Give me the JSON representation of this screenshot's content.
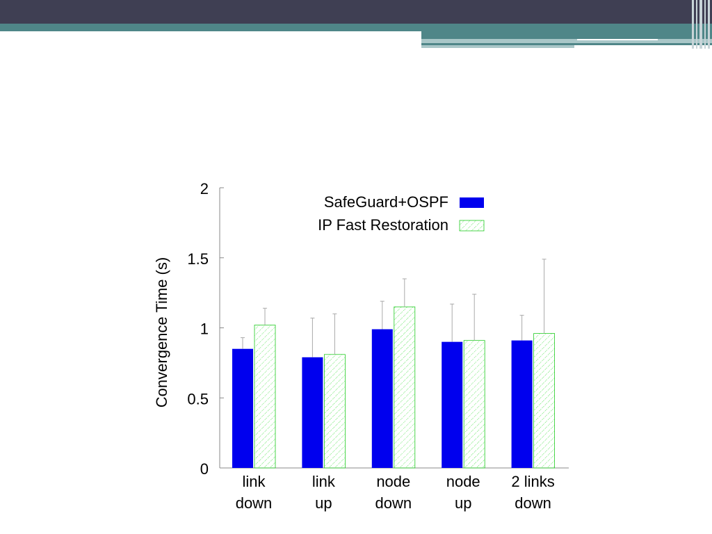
{
  "chart_data": {
    "type": "bar",
    "categories": [
      [
        "link",
        "down"
      ],
      [
        "link",
        "up"
      ],
      [
        "node",
        "down"
      ],
      [
        "node",
        "up"
      ],
      [
        "2 links",
        "down"
      ]
    ],
    "series": [
      {
        "name": "SafeGuard+OSPF",
        "values": [
          0.85,
          0.79,
          0.99,
          0.9,
          0.91
        ],
        "error_high": [
          0.93,
          1.07,
          1.19,
          1.17,
          1.09
        ],
        "color": "#0000ee",
        "fill": "solid"
      },
      {
        "name": "IP Fast Restoration",
        "values": [
          1.02,
          0.81,
          1.15,
          0.91,
          0.96
        ],
        "error_high": [
          1.14,
          1.1,
          1.35,
          1.24,
          1.49
        ],
        "color": "#22cc22",
        "fill": "hatch"
      }
    ],
    "ylabel": "Convergence Time (s)",
    "xlabel": "",
    "ylim": [
      0,
      2
    ],
    "yticks": [
      "0",
      "0.5",
      "1",
      "1.5",
      "2"
    ],
    "legend_position": "top-center",
    "grid": false
  }
}
